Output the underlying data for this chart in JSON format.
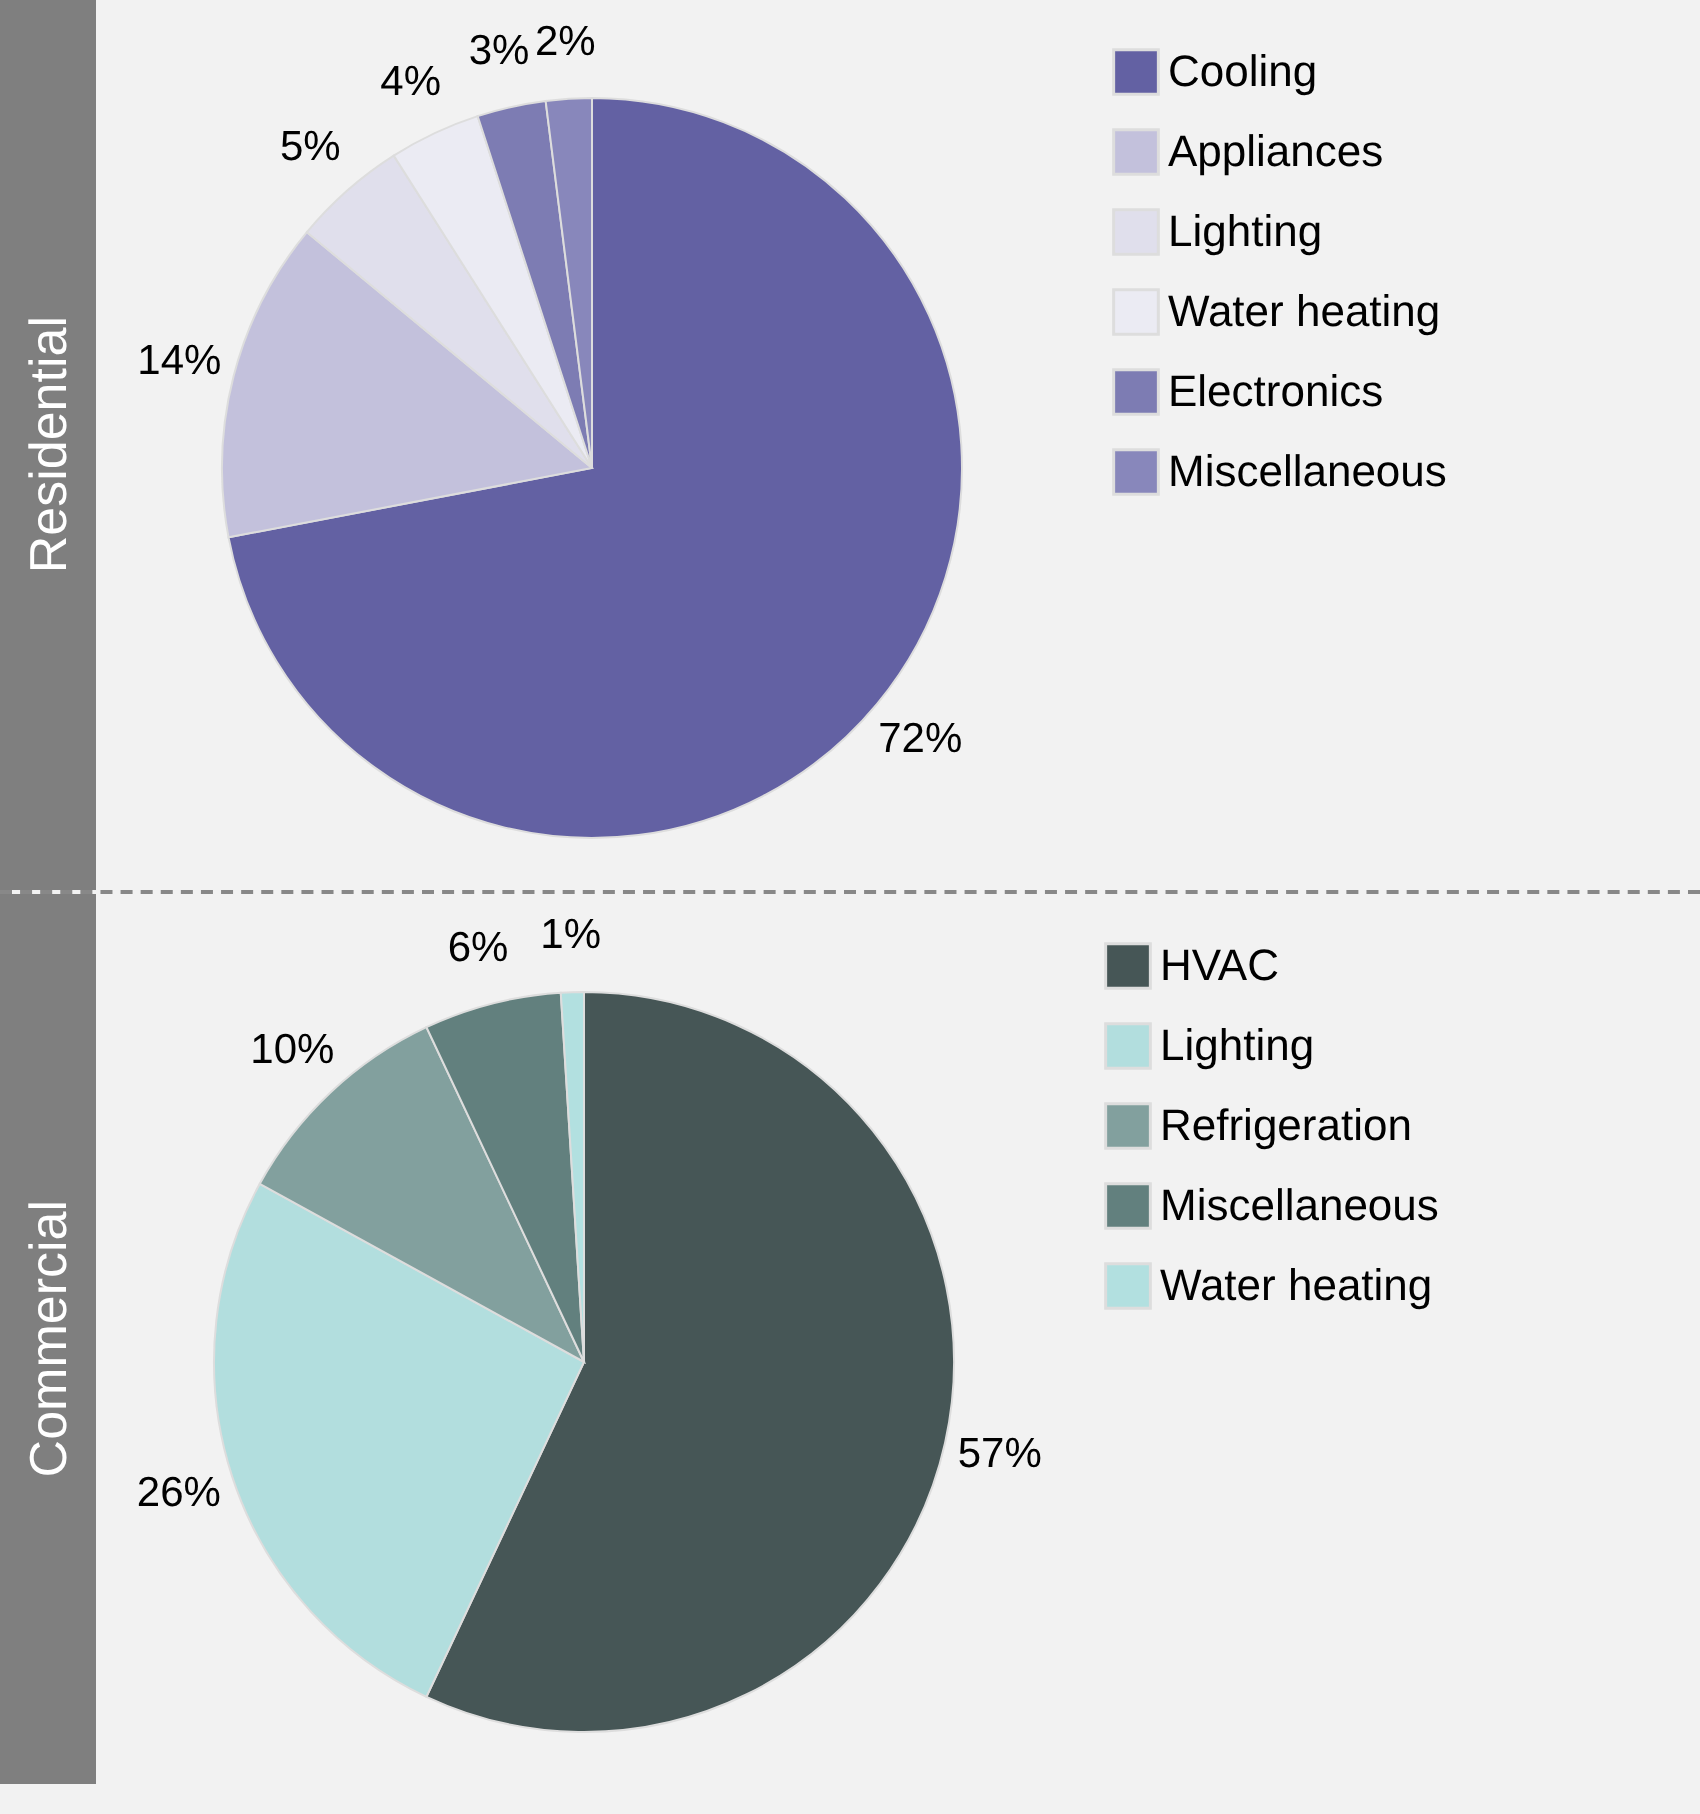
{
  "chart_data": [
    {
      "type": "pie",
      "title": "Residential",
      "categories": [
        "Cooling",
        "Appliances",
        "Lighting",
        "Water heating",
        "Electronics",
        "Miscellaneous"
      ],
      "values": [
        72,
        14,
        5,
        4,
        3,
        2
      ],
      "value_labels": [
        "72%",
        "14%",
        "5%",
        "4%",
        "3%",
        "2%"
      ],
      "colors": [
        "#6361a3",
        "#c3c1dc",
        "#e0dfec",
        "#ebebf3",
        "#7d7cb3",
        "#8887bb"
      ],
      "legend": "right"
    },
    {
      "type": "pie",
      "title": "Commercial",
      "categories": [
        "HVAC",
        "Lighting",
        "Refrigeration",
        "Miscellaneous",
        "Water heating"
      ],
      "values": [
        57,
        26,
        10,
        6,
        1
      ],
      "value_labels": [
        "57%",
        "26%",
        "10%",
        "6%",
        "1%"
      ],
      "colors": [
        "#465656",
        "#b2dede",
        "#82a09e",
        "#62807e",
        "#b2e0e0"
      ],
      "legend": "right"
    }
  ]
}
